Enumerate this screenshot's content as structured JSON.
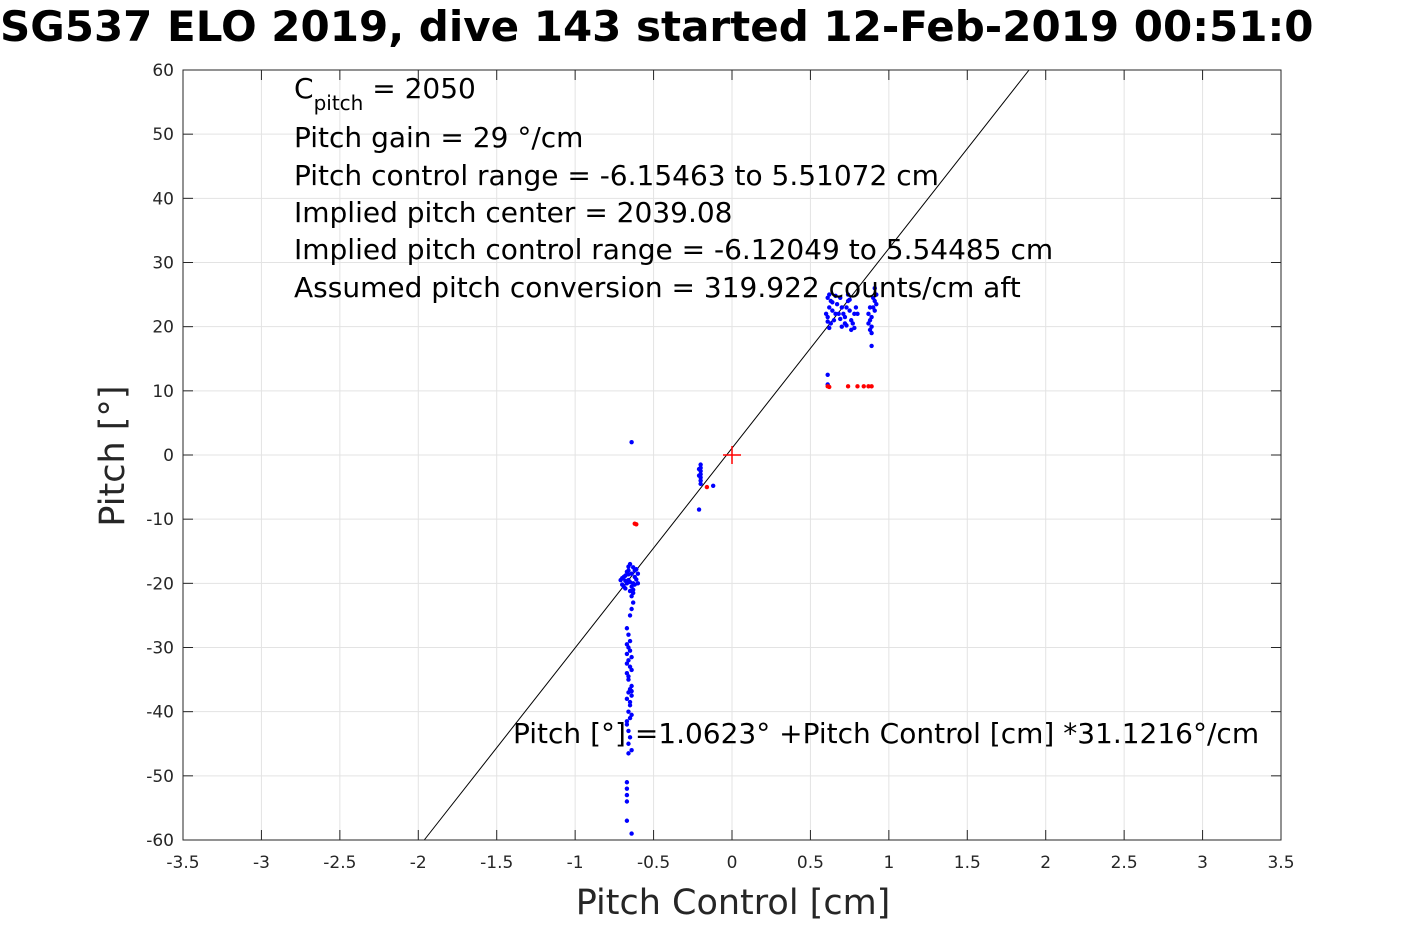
{
  "chart_data": {
    "type": "scatter",
    "title": "SG537 ELO 2019, dive 143 started 12-Feb-2019 00:51:0",
    "xlabel": "Pitch Control [cm]",
    "ylabel": "Pitch [°]",
    "xlim": [
      -3.5,
      3.5
    ],
    "ylim": [
      -60,
      60
    ],
    "xticks": [
      "-3.5",
      "-3",
      "-2.5",
      "-2",
      "-1.5",
      "-1",
      "-0.5",
      "0",
      "0.5",
      "1",
      "1.5",
      "2",
      "2.5",
      "3",
      "3.5"
    ],
    "yticks": [
      "60",
      "50",
      "40",
      "30",
      "20",
      "10",
      "0",
      "-10",
      "-20",
      "-30",
      "-40",
      "-50",
      "-60"
    ],
    "grid": true,
    "annotations": {
      "cpitch_main": "C",
      "cpitch_sub": "pitch",
      "cpitch_rest": " = 2050",
      "line2": "Pitch gain = 29 °/cm",
      "line3": "Pitch control range = -6.15463 to 5.51072 cm",
      "line4": "Implied pitch center = 2039.08",
      "line5": "Implied pitch control range = -6.12049 to 5.54485 cm",
      "line6": "Assumed pitch conversion = 319.922 counts/cm aft",
      "fit_label": "Pitch [°] =1.0623° +Pitch Control [cm] *31.1216°/cm"
    },
    "fit_line": {
      "intercept": 1.0623,
      "slope": 31.1216,
      "color": "#000000"
    },
    "center_marker": {
      "x": 0,
      "y": 0,
      "color": "#ff0000"
    },
    "series": [
      {
        "color": "#0000ff",
        "points": [
          [
            -0.64,
            2
          ],
          [
            -0.65,
            -17
          ],
          [
            -0.63,
            -17.5
          ],
          [
            -0.62,
            -18
          ],
          [
            -0.66,
            -18
          ],
          [
            -0.61,
            -17.8
          ],
          [
            -0.64,
            -18.5
          ],
          [
            -0.67,
            -18.2
          ],
          [
            -0.68,
            -18.8
          ],
          [
            -0.69,
            -19
          ],
          [
            -0.7,
            -19.2
          ],
          [
            -0.71,
            -19.5
          ],
          [
            -0.66,
            -19.5
          ],
          [
            -0.65,
            -19.8
          ],
          [
            -0.63,
            -20
          ],
          [
            -0.62,
            -19
          ],
          [
            -0.6,
            -18.5
          ],
          [
            -0.64,
            -20.5
          ],
          [
            -0.67,
            -20
          ],
          [
            -0.69,
            -20.5
          ],
          [
            -0.7,
            -20.2
          ],
          [
            -0.68,
            -19.6
          ],
          [
            -0.62,
            -20.2
          ],
          [
            -0.63,
            -21
          ],
          [
            -0.64,
            -22
          ],
          [
            -0.63,
            -23
          ],
          [
            -0.64,
            -24
          ],
          [
            -0.65,
            -25
          ],
          [
            -0.63,
            -21.5
          ],
          [
            -0.66,
            -18.6
          ],
          [
            -0.61,
            -19.4
          ],
          [
            -0.6,
            -20
          ],
          [
            -0.65,
            -21.2
          ],
          [
            -0.68,
            -20.8
          ],
          [
            -0.66,
            -17.4
          ],
          [
            -0.67,
            -27
          ],
          [
            -0.66,
            -28
          ],
          [
            -0.67,
            -29.5
          ],
          [
            -0.66,
            -30
          ],
          [
            -0.65,
            -30.5
          ],
          [
            -0.67,
            -31
          ],
          [
            -0.64,
            -31.5
          ],
          [
            -0.66,
            -32
          ],
          [
            -0.65,
            -33
          ],
          [
            -0.67,
            -34
          ],
          [
            -0.66,
            -35
          ],
          [
            -0.64,
            -36
          ],
          [
            -0.65,
            -36.5
          ],
          [
            -0.66,
            -37
          ],
          [
            -0.64,
            -37.5
          ],
          [
            -0.67,
            -38
          ],
          [
            -0.65,
            -39
          ],
          [
            -0.66,
            -40
          ],
          [
            -0.65,
            -41
          ],
          [
            -0.67,
            -42
          ],
          [
            -0.66,
            -43
          ],
          [
            -0.65,
            -44
          ],
          [
            -0.66,
            -45
          ],
          [
            -0.64,
            -46
          ],
          [
            -0.66,
            -46.5
          ],
          [
            -0.64,
            -36.8
          ],
          [
            -0.65,
            -38.5
          ],
          [
            -0.64,
            -33.5
          ],
          [
            -0.67,
            -32.5
          ],
          [
            -0.65,
            -29
          ],
          [
            -0.66,
            -34.5
          ],
          [
            -0.64,
            -40.5
          ],
          [
            -0.67,
            -41.5
          ],
          [
            -0.67,
            -51
          ],
          [
            -0.67,
            -52
          ],
          [
            -0.67,
            -53
          ],
          [
            -0.67,
            -54
          ],
          [
            -0.67,
            -57
          ],
          [
            -0.64,
            -59
          ],
          [
            -0.2,
            -1.5
          ],
          [
            -0.2,
            -2
          ],
          [
            -0.2,
            -2.5
          ],
          [
            -0.2,
            -3
          ],
          [
            -0.2,
            -3.5
          ],
          [
            -0.2,
            -4
          ],
          [
            -0.2,
            -4.5
          ],
          [
            -0.21,
            -2.2
          ],
          [
            -0.21,
            -3.2
          ],
          [
            -0.12,
            -4.8
          ],
          [
            -0.21,
            -8.5
          ],
          [
            0.6,
            22
          ],
          [
            0.61,
            21.5
          ],
          [
            0.62,
            23
          ],
          [
            0.63,
            24
          ],
          [
            0.64,
            22.5
          ],
          [
            0.65,
            21
          ],
          [
            0.66,
            22
          ],
          [
            0.67,
            23.5
          ],
          [
            0.68,
            22
          ],
          [
            0.69,
            24.5
          ],
          [
            0.7,
            23
          ],
          [
            0.71,
            22
          ],
          [
            0.72,
            21.5
          ],
          [
            0.73,
            23
          ],
          [
            0.74,
            24
          ],
          [
            0.75,
            22.5
          ],
          [
            0.76,
            21
          ],
          [
            0.77,
            20.5
          ],
          [
            0.78,
            22
          ],
          [
            0.79,
            23
          ],
          [
            0.8,
            22
          ],
          [
            0.62,
            25
          ],
          [
            0.61,
            24.5
          ],
          [
            0.63,
            20.5
          ],
          [
            0.62,
            19.8
          ],
          [
            0.61,
            20.8
          ],
          [
            0.66,
            24.8
          ],
          [
            0.74,
            25
          ],
          [
            0.72,
            20.5
          ],
          [
            0.76,
            19.5
          ],
          [
            0.78,
            19.8
          ],
          [
            0.75,
            24.2
          ],
          [
            0.7,
            20
          ],
          [
            0.64,
            23.8
          ],
          [
            0.69,
            21.2
          ],
          [
            0.73,
            20.2
          ],
          [
            0.87,
            22
          ],
          [
            0.88,
            21
          ],
          [
            0.89,
            20
          ],
          [
            0.88,
            19.5
          ],
          [
            0.87,
            20.5
          ],
          [
            0.89,
            21.5
          ],
          [
            0.88,
            23
          ],
          [
            0.89,
            19
          ],
          [
            0.9,
            23
          ],
          [
            0.91,
            24
          ],
          [
            0.92,
            25
          ],
          [
            0.91,
            26
          ],
          [
            0.92,
            23.5
          ],
          [
            0.9,
            24.5
          ],
          [
            0.91,
            22.5
          ],
          [
            0.89,
            17
          ],
          [
            0.61,
            12.5
          ],
          [
            0.61,
            11
          ]
        ]
      },
      {
        "color": "#ff0000",
        "points": [
          [
            -0.62,
            -10.7
          ],
          [
            -0.61,
            -10.8
          ],
          [
            -0.16,
            -5
          ],
          [
            0.61,
            10.7
          ],
          [
            0.62,
            10.6
          ],
          [
            0.74,
            10.7
          ],
          [
            0.8,
            10.7
          ],
          [
            0.84,
            10.7
          ],
          [
            0.87,
            10.7
          ],
          [
            0.89,
            10.7
          ]
        ]
      }
    ]
  }
}
